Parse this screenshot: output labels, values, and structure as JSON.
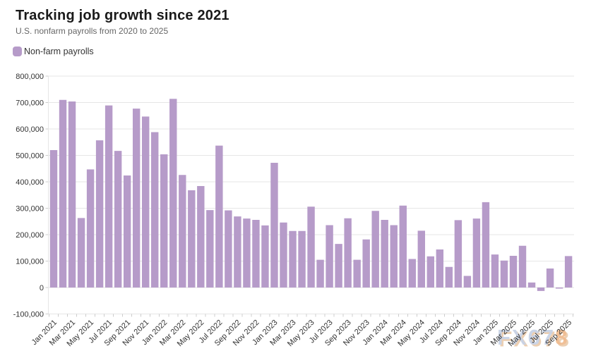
{
  "header": {
    "title": "Tracking job growth since 2021",
    "subtitle": "U.S. nonfarm payrolls from 2020 to 2025"
  },
  "legend": {
    "label": "Non-farm payrolls"
  },
  "watermark": {
    "text": "FX678",
    "part_blue": "FX67",
    "part_orange": "8"
  },
  "colors": {
    "bar": "#b69bc9",
    "grid": "#e6e6e6",
    "tick": "#cccccc",
    "axis_text": "#333333",
    "title_text": "#1a1a1a",
    "subtitle_text": "#666666",
    "watermark_blue": "#c9d3e6",
    "watermark_orange": "#f0bd92",
    "watermark_shadow": "#e8c4a0"
  },
  "chart_data": {
    "type": "bar",
    "title": "Tracking job growth since 2021",
    "subtitle": "U.S. nonfarm payrolls from 2020 to 2025",
    "series": [
      {
        "name": "Non-farm payrolls",
        "values": [
          520000,
          710000,
          704000,
          263000,
          447000,
          557000,
          689000,
          517000,
          424000,
          677000,
          647000,
          588000,
          504000,
          714000,
          426000,
          368000,
          384000,
          293000,
          537000,
          292000,
          269000,
          261000,
          256000,
          235000,
          472000,
          246000,
          214000,
          214000,
          306000,
          105000,
          236000,
          165000,
          262000,
          105000,
          182000,
          290000,
          256000,
          236000,
          310000,
          108000,
          215000,
          118000,
          144000,
          78000,
          255000,
          44000,
          261000,
          323000,
          125000,
          102000,
          120000,
          158000,
          19000,
          -13000,
          72000,
          -4000,
          119000
        ]
      }
    ],
    "categories": [
      "Jan 2021",
      "Feb 2021",
      "Mar 2021",
      "Apr 2021",
      "May 2021",
      "Jun 2021",
      "Jul 2021",
      "Aug 2021",
      "Sep 2021",
      "Oct 2021",
      "Nov 2021",
      "Dec 2021",
      "Jan 2022",
      "Feb 2022",
      "Mar 2022",
      "Apr 2022",
      "May 2022",
      "Jun 2022",
      "Jul 2022",
      "Aug 2022",
      "Sep 2022",
      "Oct 2022",
      "Nov 2022",
      "Dec 2022",
      "Jan 2023",
      "Feb 2023",
      "Mar 2023",
      "Apr 2023",
      "May 2023",
      "Jun 2023",
      "Jul 2023",
      "Aug 2023",
      "Sep 2023",
      "Oct 2023",
      "Nov 2023",
      "Dec 2023",
      "Jan 2024",
      "Feb 2024",
      "Mar 2024",
      "Apr 2024",
      "May 2024",
      "Jun 2024",
      "Jul 2024",
      "Aug 2024",
      "Sep 2024",
      "Oct 2024",
      "Nov 2024",
      "Dec 2024",
      "Jan 2025",
      "Feb 2025",
      "Mar 2025",
      "Apr 2025",
      "May 2025",
      "Jun 2025",
      "Jul 2025",
      "Aug 2025",
      "Sep 2025"
    ],
    "xtick_labels": [
      "Jan 2021",
      "Mar 2021",
      "May 2021",
      "Jul 2021",
      "Sep 2021",
      "Nov 2021",
      "Jan 2022",
      "Mar 2022",
      "May 2022",
      "Jul 2022",
      "Sep 2022",
      "Nov 2022",
      "Jan 2023",
      "Mar 2023",
      "May 2023",
      "Jul 2023",
      "Sep 2023",
      "Nov 2023",
      "Jan 2024",
      "Mar 2024",
      "May 2024",
      "Jul 2024",
      "Sep 2024",
      "Nov 2024",
      "Jan 2025",
      "Mar 2025",
      "May 2025",
      "Jul 2025",
      "Sep 2025"
    ],
    "ytick_labels": [
      "-100,000",
      "0",
      "100,000",
      "200,000",
      "300,000",
      "400,000",
      "500,000",
      "600,000",
      "700,000",
      "800,000"
    ],
    "xlabel": "",
    "ylabel": "",
    "ylim": [
      -100000,
      800000
    ],
    "ytick_step": 100000,
    "grid": true,
    "legend_position": "top-left"
  }
}
